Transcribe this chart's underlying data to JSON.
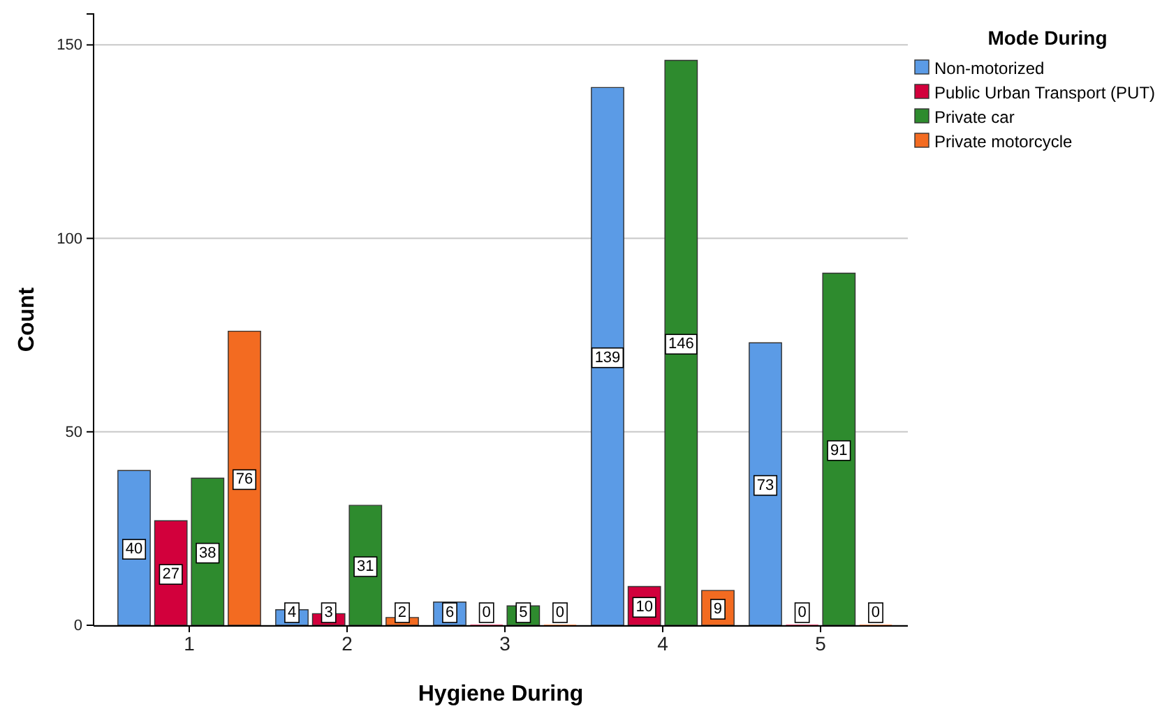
{
  "chart_data": {
    "type": "bar",
    "xlabel": "Hygiene During",
    "ylabel": "Count",
    "legend_title": "Mode During",
    "categories": [
      "1",
      "2",
      "3",
      "4",
      "5"
    ],
    "series": [
      {
        "name": "Non-motorized",
        "color": "#5b9be6",
        "values": [
          40,
          4,
          6,
          139,
          73
        ]
      },
      {
        "name": "Public Urban Transport (PUT)",
        "color": "#d2003c",
        "values": [
          27,
          3,
          0,
          10,
          0
        ]
      },
      {
        "name": "Private car",
        "color": "#2e8b2e",
        "values": [
          38,
          31,
          5,
          146,
          91
        ]
      },
      {
        "name": "Private motorcycle",
        "color": "#f36b21",
        "values": [
          76,
          2,
          0,
          9,
          0
        ]
      }
    ],
    "ylim": [
      0,
      158
    ],
    "yticks": [
      0,
      50,
      100,
      150
    ],
    "grid": "y",
    "legend": "top right",
    "data_labels": true
  }
}
